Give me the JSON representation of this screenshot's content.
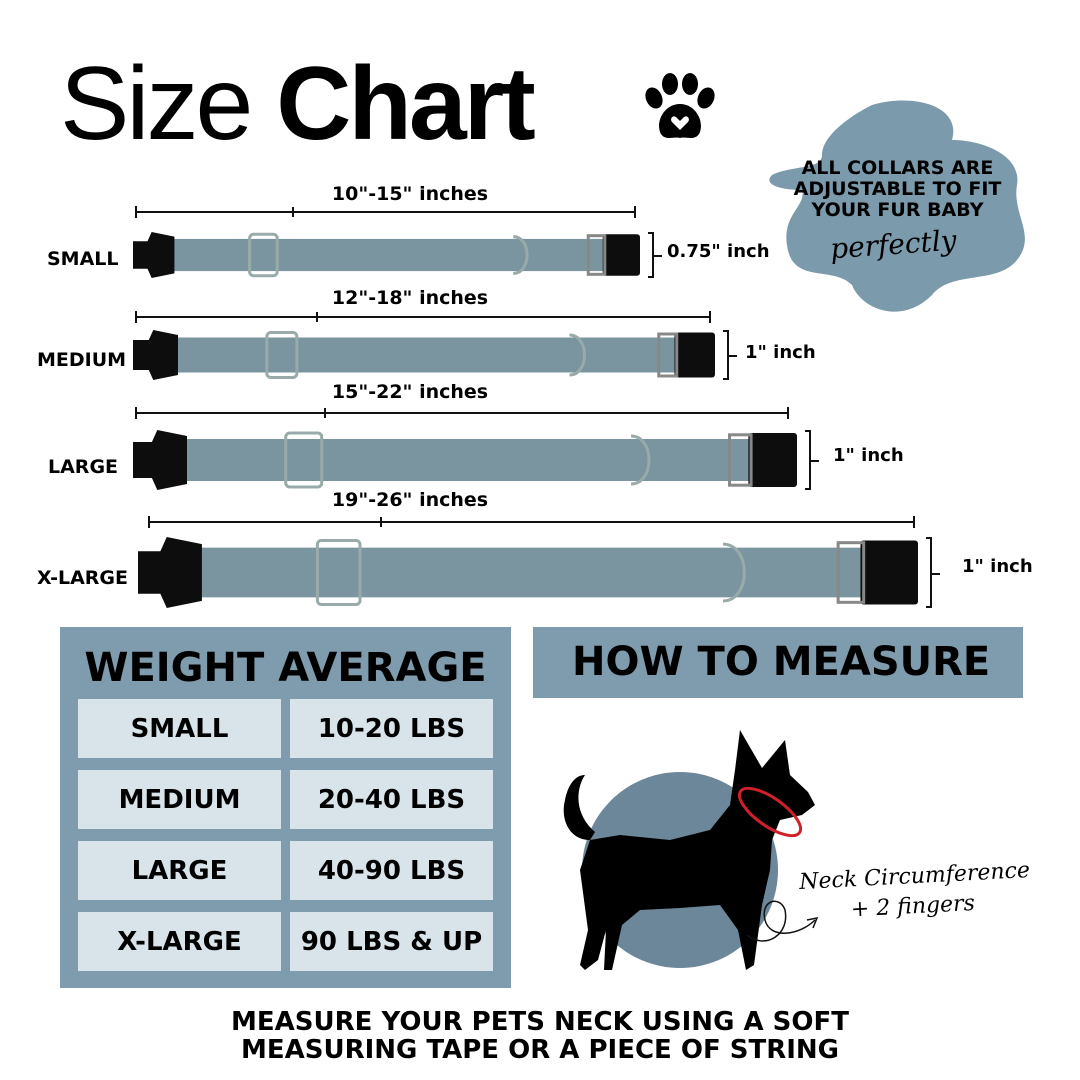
{
  "title": {
    "light": "Size",
    "bold": "Chart"
  },
  "note": {
    "text": "ALL COLLARS ARE ADJUSTABLE TO FIT YOUR FUR BABY",
    "script": "perfectly"
  },
  "sizes": [
    {
      "label": "SMALL",
      "range": "10\"-15\" inches",
      "width": "0.75\" inch"
    },
    {
      "label": "MEDIUM",
      "range": "12\"-18\" inches",
      "width": "1\" inch"
    },
    {
      "label": "LARGE",
      "range": "15\"-22\" inches",
      "width": "1\" inch"
    },
    {
      "label": "X-LARGE",
      "range": "19\"-26\" inches",
      "width": "1\" inch"
    }
  ],
  "weight": {
    "title": "WEIGHT AVERAGE",
    "rows": [
      {
        "size": "SMALL",
        "weight": "10-20 LBS"
      },
      {
        "size": "MEDIUM",
        "weight": "20-40 LBS"
      },
      {
        "size": "LARGE",
        "weight": "40-90 LBS"
      },
      {
        "size": "X-LARGE",
        "weight": "90 LBS & UP"
      }
    ]
  },
  "measure": {
    "title": "HOW TO MEASURE",
    "note_line1": "Neck Circumference",
    "note_line2": "+ 2 fingers",
    "instructions_line1": "MEASURE YOUR PETS NECK USING A SOFT",
    "instructions_line2": "MEASURING TAPE OR A PIECE OF STRING"
  },
  "colors": {
    "accent": "#7f9cae",
    "cell": "#d9e3ea",
    "collar": "#7a959f",
    "blob": "#7b9aab",
    "circle": "#6b8799",
    "neck_loop": "#d0202a"
  },
  "icons": [
    "paw-heart-icon",
    "dog-silhouette-icon"
  ]
}
